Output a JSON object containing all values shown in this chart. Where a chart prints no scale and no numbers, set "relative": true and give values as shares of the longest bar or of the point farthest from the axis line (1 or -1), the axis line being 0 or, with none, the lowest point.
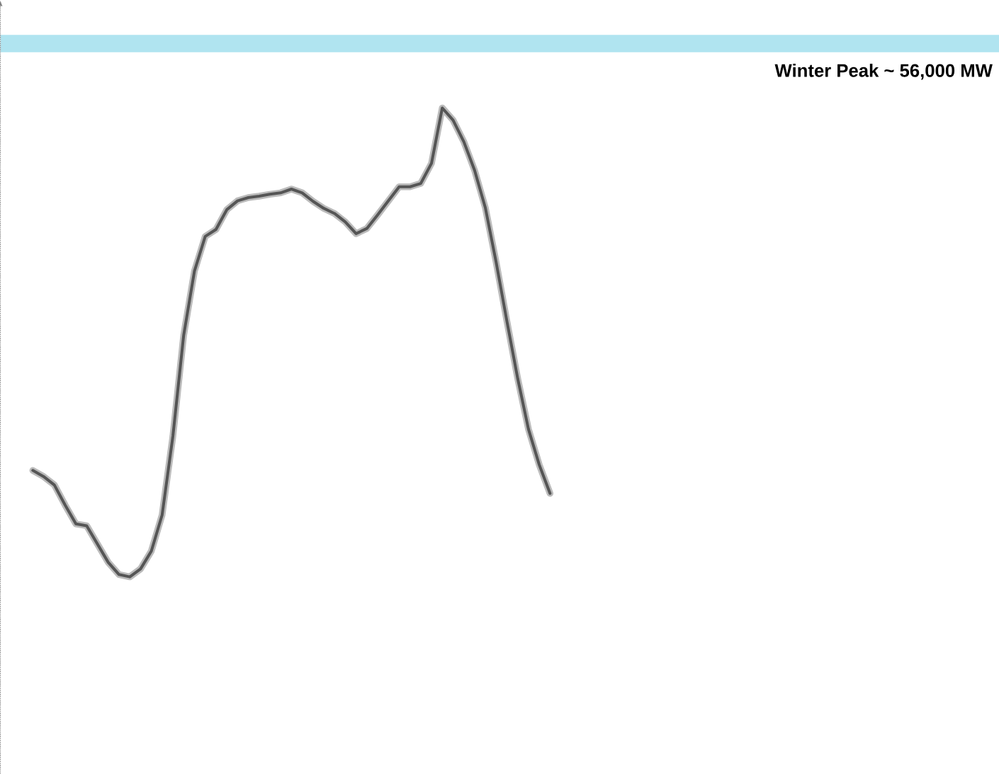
{
  "chart_data": {
    "type": "line",
    "relative": true,
    "color": "#555555",
    "categories": [
      null,
      null,
      null,
      null,
      null,
      null,
      null,
      null,
      null,
      null,
      null,
      null,
      null,
      null,
      null,
      null,
      null,
      null,
      null,
      null,
      null,
      null,
      null,
      null,
      null,
      null,
      null,
      null,
      null,
      null,
      null,
      null,
      null,
      null,
      null,
      null,
      null,
      null,
      null,
      null,
      null,
      null,
      null,
      null,
      null,
      null,
      null,
      null,
      null,
      null,
      null,
      null,
      null,
      null,
      null,
      null,
      null,
      null,
      null,
      null,
      null,
      null,
      null,
      null,
      null,
      null,
      null,
      null,
      null,
      null,
      null,
      null,
      null,
      null,
      null,
      null,
      null,
      null,
      null,
      null,
      null,
      null,
      null,
      null,
      null,
      null,
      null,
      null,
      null,
      null
    ],
    "values": [
      0.227,
      0.214,
      0.196,
      0.153,
      0.113,
      0.109,
      0.07,
      0.031,
      0.005,
      0,
      0.017,
      0.055,
      0.132,
      0.3,
      0.515,
      0.652,
      0.726,
      0.741,
      0.783,
      0.802,
      0.809,
      0.812,
      0.816,
      0.819,
      0.827,
      0.819,
      0.801,
      0.786,
      0.775,
      0.757,
      0.732,
      0.743,
      0.772,
      0.802,
      0.832,
      0.832,
      0.839,
      0.882,
      1,
      0.974,
      0.928,
      0.867,
      0.787,
      0.671,
      0.545,
      0.423,
      0.315,
      0.239,
      0.178,
      null,
      null,
      null,
      null,
      null,
      null,
      null,
      null,
      null,
      null,
      null,
      null,
      null,
      null,
      null,
      null,
      null,
      null,
      null,
      null,
      null,
      null,
      null,
      null,
      null,
      null,
      null,
      null,
      null,
      null,
      null,
      null,
      null,
      null,
      null,
      null,
      null,
      null,
      null,
      null,
      null
    ],
    "bands": [
      {
        "axis": "y",
        "from": 1.119,
        "to": 1.156,
        "label": "Winter Peak ~ 56,000 MW",
        "color": "#b0e4f0"
      }
    ]
  }
}
